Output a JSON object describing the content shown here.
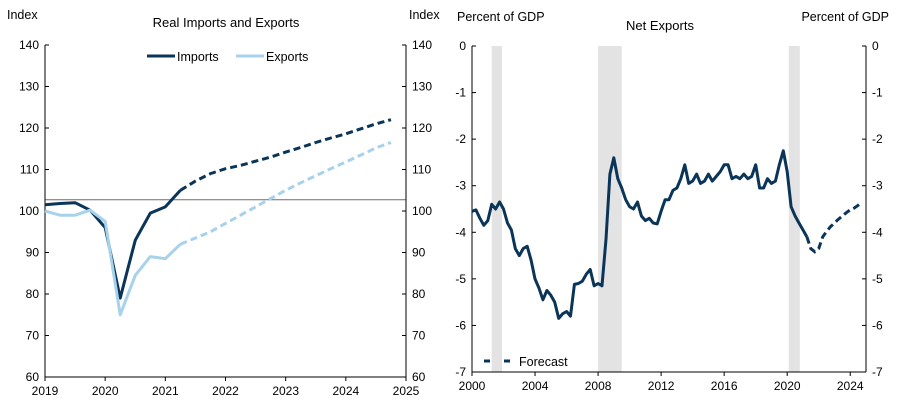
{
  "chart_data": [
    {
      "type": "line",
      "title": "Real Imports and Exports",
      "ylabel_left": "Index",
      "ylabel_right": "Index",
      "ylim": [
        60,
        140
      ],
      "yticks": [
        60,
        70,
        80,
        90,
        100,
        110,
        120,
        130,
        140
      ],
      "xlim": [
        2019,
        2025
      ],
      "xticks": [
        2019,
        2020,
        2021,
        2022,
        2023,
        2024,
        2025
      ],
      "reference_line": 102.7,
      "legend": {
        "position": "top-center",
        "entries": [
          "Imports",
          "Exports"
        ]
      },
      "series": [
        {
          "name": "Imports",
          "color": "#0b3558",
          "actual": [
            [
              2019.0,
              101.5
            ],
            [
              2019.25,
              101.8
            ],
            [
              2019.5,
              102.0
            ],
            [
              2019.75,
              100.2
            ],
            [
              2020.0,
              96.0
            ],
            [
              2020.25,
              79.0
            ],
            [
              2020.5,
              93.0
            ],
            [
              2020.75,
              99.5
            ],
            [
              2021.0,
              101.0
            ],
            [
              2021.25,
              105.0
            ]
          ],
          "forecast": [
            [
              2021.25,
              105.0
            ],
            [
              2021.5,
              107.2
            ],
            [
              2021.75,
              109.0
            ],
            [
              2022.0,
              110.2
            ],
            [
              2022.25,
              111.0
            ],
            [
              2022.5,
              112.0
            ],
            [
              2022.75,
              113.0
            ],
            [
              2023.0,
              114.2
            ],
            [
              2023.25,
              115.3
            ],
            [
              2023.5,
              116.5
            ],
            [
              2023.75,
              117.6
            ],
            [
              2024.0,
              118.6
            ],
            [
              2024.25,
              119.8
            ],
            [
              2024.5,
              121.0
            ],
            [
              2024.75,
              122.0
            ]
          ]
        },
        {
          "name": "Exports",
          "color": "#a8d2ec",
          "actual": [
            [
              2019.0,
              100.0
            ],
            [
              2019.25,
              99.0
            ],
            [
              2019.5,
              99.0
            ],
            [
              2019.75,
              100.2
            ],
            [
              2020.0,
              97.5
            ],
            [
              2020.25,
              75.0
            ],
            [
              2020.5,
              84.5
            ],
            [
              2020.75,
              89.0
            ],
            [
              2021.0,
              88.5
            ],
            [
              2021.25,
              92.0
            ]
          ],
          "forecast": [
            [
              2021.25,
              92.0
            ],
            [
              2021.5,
              93.5
            ],
            [
              2021.75,
              95.0
            ],
            [
              2022.0,
              97.0
            ],
            [
              2022.25,
              99.0
            ],
            [
              2022.5,
              101.0
            ],
            [
              2022.75,
              103.0
            ],
            [
              2023.0,
              105.0
            ],
            [
              2023.25,
              106.8
            ],
            [
              2023.5,
              108.5
            ],
            [
              2023.75,
              110.2
            ],
            [
              2024.0,
              111.8
            ],
            [
              2024.25,
              113.5
            ],
            [
              2024.5,
              115.2
            ],
            [
              2024.75,
              116.5
            ]
          ]
        }
      ]
    },
    {
      "type": "line",
      "title": "Net Exports",
      "ylabel_left": "Percent of GDP",
      "ylabel_right": "Percent of GDP",
      "ylim": [
        -7,
        0
      ],
      "yticks": [
        0,
        -1,
        -2,
        -3,
        -4,
        -5,
        -6,
        -7
      ],
      "xlim": [
        2000,
        2025
      ],
      "xticks": [
        2000,
        2004,
        2008,
        2012,
        2016,
        2020,
        2024
      ],
      "recessions": [
        [
          2001.25,
          2001.9
        ],
        [
          2008.0,
          2009.5
        ],
        [
          2020.1,
          2020.8
        ]
      ],
      "legend": {
        "position": "bottom-left",
        "entries": [
          "Forecast"
        ]
      },
      "series": [
        {
          "name": "Net Exports",
          "color": "#0b3558",
          "actual": [
            [
              2000.0,
              -3.55
            ],
            [
              2000.25,
              -3.52
            ],
            [
              2000.5,
              -3.7
            ],
            [
              2000.75,
              -3.85
            ],
            [
              2001.0,
              -3.75
            ],
            [
              2001.25,
              -3.4
            ],
            [
              2001.5,
              -3.5
            ],
            [
              2001.75,
              -3.35
            ],
            [
              2002.0,
              -3.5
            ],
            [
              2002.25,
              -3.8
            ],
            [
              2002.5,
              -3.95
            ],
            [
              2002.75,
              -4.35
            ],
            [
              2003.0,
              -4.5
            ],
            [
              2003.25,
              -4.35
            ],
            [
              2003.5,
              -4.3
            ],
            [
              2003.75,
              -4.6
            ],
            [
              2004.0,
              -5.0
            ],
            [
              2004.25,
              -5.2
            ],
            [
              2004.5,
              -5.45
            ],
            [
              2004.75,
              -5.25
            ],
            [
              2005.0,
              -5.35
            ],
            [
              2005.25,
              -5.5
            ],
            [
              2005.5,
              -5.85
            ],
            [
              2005.75,
              -5.75
            ],
            [
              2006.0,
              -5.7
            ],
            [
              2006.25,
              -5.8
            ],
            [
              2006.5,
              -5.12
            ],
            [
              2006.75,
              -5.1
            ],
            [
              2007.0,
              -5.05
            ],
            [
              2007.25,
              -4.9
            ],
            [
              2007.5,
              -4.8
            ],
            [
              2007.75,
              -5.15
            ],
            [
              2008.0,
              -5.1
            ],
            [
              2008.25,
              -5.15
            ],
            [
              2008.5,
              -4.15
            ],
            [
              2008.75,
              -2.75
            ],
            [
              2009.0,
              -2.4
            ],
            [
              2009.25,
              -2.85
            ],
            [
              2009.5,
              -3.05
            ],
            [
              2009.75,
              -3.3
            ],
            [
              2010.0,
              -3.45
            ],
            [
              2010.25,
              -3.5
            ],
            [
              2010.5,
              -3.35
            ],
            [
              2010.75,
              -3.65
            ],
            [
              2011.0,
              -3.75
            ],
            [
              2011.25,
              -3.7
            ],
            [
              2011.5,
              -3.8
            ],
            [
              2011.75,
              -3.82
            ],
            [
              2012.0,
              -3.55
            ],
            [
              2012.25,
              -3.3
            ],
            [
              2012.5,
              -3.3
            ],
            [
              2012.75,
              -3.1
            ],
            [
              2013.0,
              -3.05
            ],
            [
              2013.25,
              -2.85
            ],
            [
              2013.5,
              -2.55
            ],
            [
              2013.75,
              -2.95
            ],
            [
              2014.0,
              -2.9
            ],
            [
              2014.25,
              -2.75
            ],
            [
              2014.5,
              -2.95
            ],
            [
              2014.75,
              -2.9
            ],
            [
              2015.0,
              -2.75
            ],
            [
              2015.25,
              -2.9
            ],
            [
              2015.5,
              -2.8
            ],
            [
              2015.75,
              -2.7
            ],
            [
              2016.0,
              -2.55
            ],
            [
              2016.25,
              -2.55
            ],
            [
              2016.5,
              -2.85
            ],
            [
              2016.75,
              -2.8
            ],
            [
              2017.0,
              -2.85
            ],
            [
              2017.25,
              -2.75
            ],
            [
              2017.5,
              -2.85
            ],
            [
              2017.75,
              -2.8
            ],
            [
              2018.0,
              -2.55
            ],
            [
              2018.25,
              -3.05
            ],
            [
              2018.5,
              -3.05
            ],
            [
              2018.75,
              -2.85
            ],
            [
              2019.0,
              -2.95
            ],
            [
              2019.25,
              -2.9
            ],
            [
              2019.5,
              -2.55
            ],
            [
              2019.75,
              -2.25
            ],
            [
              2020.0,
              -2.7
            ],
            [
              2020.25,
              -3.45
            ],
            [
              2020.5,
              -3.65
            ],
            [
              2020.75,
              -3.8
            ],
            [
              2021.0,
              -3.95
            ],
            [
              2021.25,
              -4.1
            ]
          ],
          "forecast": [
            [
              2021.25,
              -4.1
            ],
            [
              2021.5,
              -4.35
            ],
            [
              2021.75,
              -4.42
            ],
            [
              2022.0,
              -4.35
            ],
            [
              2022.25,
              -4.1
            ],
            [
              2022.5,
              -3.98
            ],
            [
              2022.75,
              -3.88
            ],
            [
              2023.0,
              -3.8
            ],
            [
              2023.25,
              -3.72
            ],
            [
              2023.5,
              -3.65
            ],
            [
              2023.75,
              -3.58
            ],
            [
              2024.0,
              -3.52
            ],
            [
              2024.25,
              -3.48
            ],
            [
              2024.5,
              -3.42
            ],
            [
              2024.75,
              -3.35
            ]
          ]
        }
      ]
    }
  ]
}
